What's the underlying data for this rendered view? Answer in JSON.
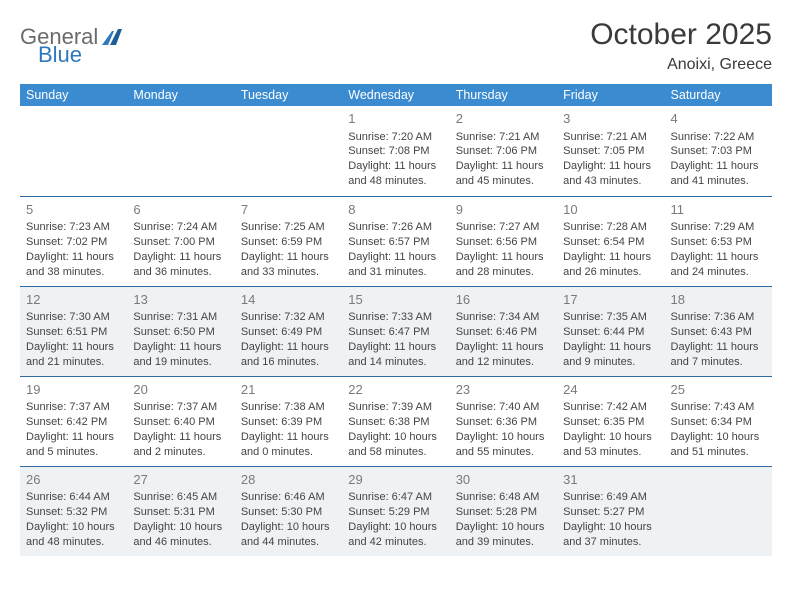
{
  "logo": {
    "word1": "General",
    "word2": "Blue"
  },
  "title": "October 2025",
  "location": "Anoixi, Greece",
  "colors": {
    "header_bg": "#3b8bd0",
    "header_text": "#ffffff",
    "row_border": "#2f6aa0",
    "band_bg": "#eef2f5",
    "daynum": "#7a7a7a",
    "body_text": "#444444",
    "logo_gray": "#6b6b6b",
    "logo_blue": "#2f78bd"
  },
  "daysOfWeek": [
    "Sunday",
    "Monday",
    "Tuesday",
    "Wednesday",
    "Thursday",
    "Friday",
    "Saturday"
  ],
  "weeks": [
    [
      null,
      null,
      null,
      {
        "n": "1",
        "sr": "7:20 AM",
        "ss": "7:08 PM",
        "dl": "11 hours and 48 minutes."
      },
      {
        "n": "2",
        "sr": "7:21 AM",
        "ss": "7:06 PM",
        "dl": "11 hours and 45 minutes."
      },
      {
        "n": "3",
        "sr": "7:21 AM",
        "ss": "7:05 PM",
        "dl": "11 hours and 43 minutes."
      },
      {
        "n": "4",
        "sr": "7:22 AM",
        "ss": "7:03 PM",
        "dl": "11 hours and 41 minutes."
      }
    ],
    [
      {
        "n": "5",
        "sr": "7:23 AM",
        "ss": "7:02 PM",
        "dl": "11 hours and 38 minutes."
      },
      {
        "n": "6",
        "sr": "7:24 AM",
        "ss": "7:00 PM",
        "dl": "11 hours and 36 minutes."
      },
      {
        "n": "7",
        "sr": "7:25 AM",
        "ss": "6:59 PM",
        "dl": "11 hours and 33 minutes."
      },
      {
        "n": "8",
        "sr": "7:26 AM",
        "ss": "6:57 PM",
        "dl": "11 hours and 31 minutes."
      },
      {
        "n": "9",
        "sr": "7:27 AM",
        "ss": "6:56 PM",
        "dl": "11 hours and 28 minutes."
      },
      {
        "n": "10",
        "sr": "7:28 AM",
        "ss": "6:54 PM",
        "dl": "11 hours and 26 minutes."
      },
      {
        "n": "11",
        "sr": "7:29 AM",
        "ss": "6:53 PM",
        "dl": "11 hours and 24 minutes."
      }
    ],
    [
      {
        "n": "12",
        "sr": "7:30 AM",
        "ss": "6:51 PM",
        "dl": "11 hours and 21 minutes."
      },
      {
        "n": "13",
        "sr": "7:31 AM",
        "ss": "6:50 PM",
        "dl": "11 hours and 19 minutes."
      },
      {
        "n": "14",
        "sr": "7:32 AM",
        "ss": "6:49 PM",
        "dl": "11 hours and 16 minutes."
      },
      {
        "n": "15",
        "sr": "7:33 AM",
        "ss": "6:47 PM",
        "dl": "11 hours and 14 minutes."
      },
      {
        "n": "16",
        "sr": "7:34 AM",
        "ss": "6:46 PM",
        "dl": "11 hours and 12 minutes."
      },
      {
        "n": "17",
        "sr": "7:35 AM",
        "ss": "6:44 PM",
        "dl": "11 hours and 9 minutes."
      },
      {
        "n": "18",
        "sr": "7:36 AM",
        "ss": "6:43 PM",
        "dl": "11 hours and 7 minutes."
      }
    ],
    [
      {
        "n": "19",
        "sr": "7:37 AM",
        "ss": "6:42 PM",
        "dl": "11 hours and 5 minutes."
      },
      {
        "n": "20",
        "sr": "7:37 AM",
        "ss": "6:40 PM",
        "dl": "11 hours and 2 minutes."
      },
      {
        "n": "21",
        "sr": "7:38 AM",
        "ss": "6:39 PM",
        "dl": "11 hours and 0 minutes."
      },
      {
        "n": "22",
        "sr": "7:39 AM",
        "ss": "6:38 PM",
        "dl": "10 hours and 58 minutes."
      },
      {
        "n": "23",
        "sr": "7:40 AM",
        "ss": "6:36 PM",
        "dl": "10 hours and 55 minutes."
      },
      {
        "n": "24",
        "sr": "7:42 AM",
        "ss": "6:35 PM",
        "dl": "10 hours and 53 minutes."
      },
      {
        "n": "25",
        "sr": "7:43 AM",
        "ss": "6:34 PM",
        "dl": "10 hours and 51 minutes."
      }
    ],
    [
      {
        "n": "26",
        "sr": "6:44 AM",
        "ss": "5:32 PM",
        "dl": "10 hours and 48 minutes."
      },
      {
        "n": "27",
        "sr": "6:45 AM",
        "ss": "5:31 PM",
        "dl": "10 hours and 46 minutes."
      },
      {
        "n": "28",
        "sr": "6:46 AM",
        "ss": "5:30 PM",
        "dl": "10 hours and 44 minutes."
      },
      {
        "n": "29",
        "sr": "6:47 AM",
        "ss": "5:29 PM",
        "dl": "10 hours and 42 minutes."
      },
      {
        "n": "30",
        "sr": "6:48 AM",
        "ss": "5:28 PM",
        "dl": "10 hours and 39 minutes."
      },
      {
        "n": "31",
        "sr": "6:49 AM",
        "ss": "5:27 PM",
        "dl": "10 hours and 37 minutes."
      },
      null
    ]
  ],
  "labels": {
    "sunrise": "Sunrise:",
    "sunset": "Sunset:",
    "daylight": "Daylight:"
  },
  "bandRows": [
    2,
    4
  ]
}
